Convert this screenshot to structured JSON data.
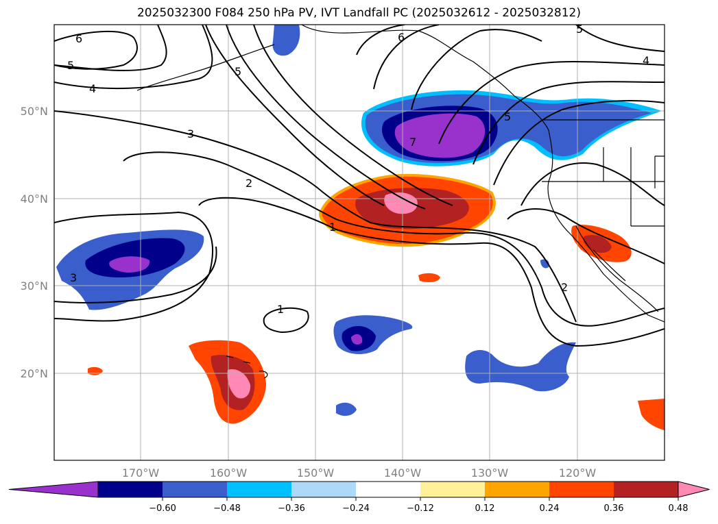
{
  "title": "2025032300 F084 250 hPa PV, IVT Landfall PC (2025032612 - 2025032812)",
  "map": {
    "lat_labels": [
      "50°N",
      "40°N",
      "30°N",
      "20°N"
    ],
    "lon_labels": [
      "170°W",
      "160°W",
      "150°W",
      "140°W",
      "130°W",
      "120°W"
    ],
    "grid": true,
    "contour_labels": [
      "6",
      "5",
      "4",
      "3",
      "2",
      "1",
      "5",
      "6",
      "7",
      "5",
      "5",
      "4",
      "3",
      "1",
      "2"
    ],
    "land_color": "#ffffff",
    "coast_color": "#000000"
  },
  "colorbar": {
    "orientation": "horizontal",
    "extend": "both",
    "colors": [
      "#9932cc",
      "#00008b",
      "#3a5fcd",
      "#00bfff",
      "#add8f7",
      "#ffffff",
      "#fff09a",
      "#ffa500",
      "#ff4500",
      "#b22222",
      "#ff88b4"
    ],
    "ticks": [
      "−0.60",
      "−0.48",
      "−0.36",
      "−0.24",
      "−0.12",
      "0.12",
      "0.24",
      "0.36",
      "0.48",
      "0.60"
    ]
  }
}
